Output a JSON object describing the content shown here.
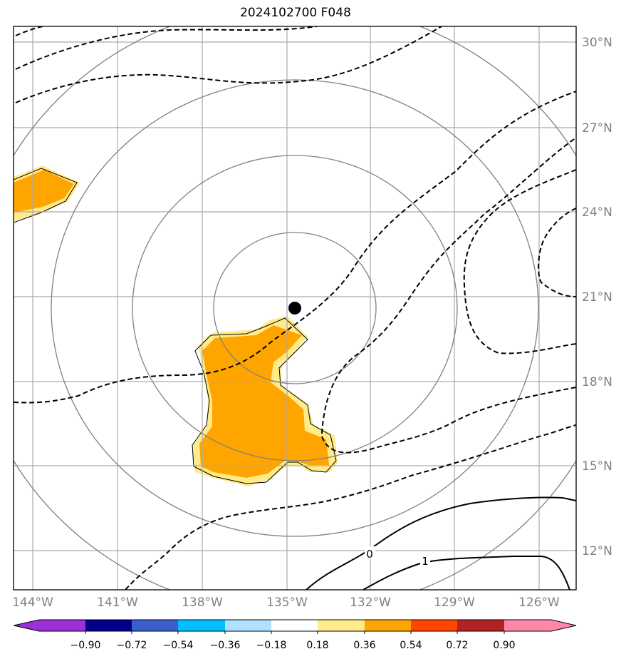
{
  "title": "2024102700 F048",
  "map": {
    "lon_labels": [
      "144°W",
      "141°W",
      "138°W",
      "135°W",
      "132°W",
      "129°W",
      "126°W"
    ],
    "lat_labels": [
      "30°N",
      "27°N",
      "24°N",
      "21°N",
      "18°N",
      "15°N",
      "12°N"
    ],
    "contour_labels": [
      "0",
      "1"
    ],
    "storm_center": {
      "lon": -134.7,
      "lat": 20.6
    }
  },
  "colorbar": {
    "ticks": [
      "−0.90",
      "−0.72",
      "−0.54",
      "−0.36",
      "−0.18",
      "0.18",
      "0.36",
      "0.54",
      "0.72",
      "0.90"
    ],
    "colors": [
      "#9b30d9",
      "#00008b",
      "#3a5fcd",
      "#00bfff",
      "#b0e0ff",
      "#ffffff",
      "#ffeb8a",
      "#ffa500",
      "#ff4500",
      "#b22222",
      "#ff88aa"
    ]
  }
}
